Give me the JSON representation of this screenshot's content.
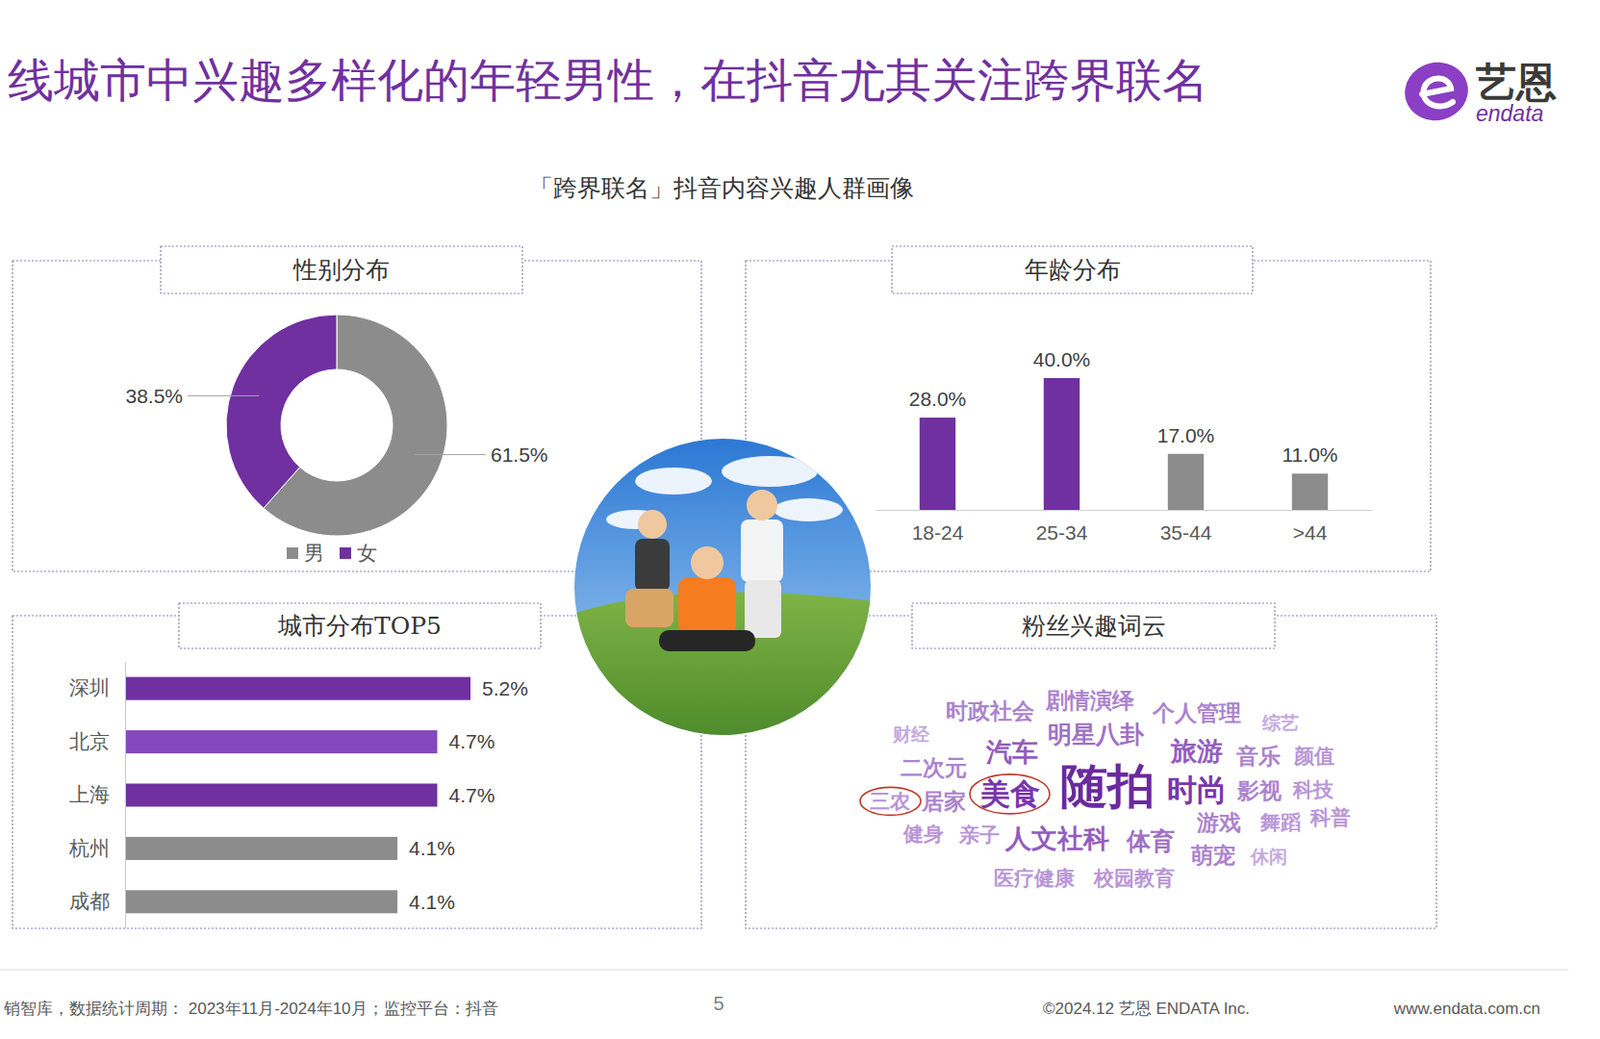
{
  "header": {
    "title": "线城市中兴趣多样化的年轻男性，在抖音尤其关注跨界联名",
    "logo_cn": "艺恩",
    "logo_en": "endata"
  },
  "subtitle": "「跨界联名」抖音内容兴趣人群画像",
  "chart_data": [
    {
      "type": "pie",
      "title": "性别分布",
      "categories": [
        "男",
        "女"
      ],
      "values": [
        61.5,
        38.5
      ],
      "value_labels": [
        "61.5%",
        "38.5%"
      ],
      "colors": [
        "#8c8c8c",
        "#7030a0"
      ],
      "data_labels": true,
      "legend": "bottom"
    },
    {
      "type": "bar",
      "title": "年龄分布",
      "categories": [
        "18-24",
        "25-34",
        "35-44",
        ">44"
      ],
      "values": [
        28.0,
        40.0,
        17.0,
        11.0
      ],
      "value_labels": [
        "28.0%",
        "40.0%",
        "17.0%",
        "11.0%"
      ],
      "colors": [
        "#7030a0",
        "#7030a0",
        "#8c8c8c",
        "#8c8c8c"
      ],
      "ylim": [
        0,
        40
      ],
      "data_labels": true,
      "tick_labels": "x"
    },
    {
      "type": "bar",
      "title": "城市分布TOP5",
      "orientation": "horizontal",
      "categories": [
        "深圳",
        "北京",
        "上海",
        "杭州",
        "成都"
      ],
      "values": [
        5.2,
        4.7,
        4.7,
        4.1,
        4.1
      ],
      "value_labels": [
        "5.2%",
        "4.7%",
        "4.7%",
        "4.1%",
        "4.1%"
      ],
      "colors": [
        "#7030a0",
        "#8548bd",
        "#7030a0",
        "#8c8c8c",
        "#8c8c8c"
      ],
      "xlim": [
        0,
        5.2
      ],
      "data_labels": true,
      "tick_labels": "y"
    }
  ],
  "word_cloud": {
    "title": "粉丝兴趣词云",
    "words": [
      {
        "text": "时政社会",
        "weight": 3
      },
      {
        "text": "剧情演绎",
        "weight": 3
      },
      {
        "text": "个人管理",
        "weight": 3
      },
      {
        "text": "综艺",
        "weight": 1
      },
      {
        "text": "财经",
        "weight": 1
      },
      {
        "text": "明星八卦",
        "weight": 4
      },
      {
        "text": "旅游",
        "weight": 5
      },
      {
        "text": "音乐",
        "weight": 3
      },
      {
        "text": "颜值",
        "weight": 2
      },
      {
        "text": "二次元",
        "weight": 3
      },
      {
        "text": "汽车",
        "weight": 5
      },
      {
        "text": "三农",
        "weight": 2,
        "circled": true
      },
      {
        "text": "居家",
        "weight": 3
      },
      {
        "text": "美食",
        "weight": 7,
        "circled": true
      },
      {
        "text": "随拍",
        "weight": 16
      },
      {
        "text": "时尚",
        "weight": 7
      },
      {
        "text": "影视",
        "weight": 3
      },
      {
        "text": "科技",
        "weight": 2
      },
      {
        "text": "游戏",
        "weight": 3
      },
      {
        "text": "舞蹈",
        "weight": 2
      },
      {
        "text": "科普",
        "weight": 2
      },
      {
        "text": "健身",
        "weight": 2
      },
      {
        "text": "亲子",
        "weight": 2
      },
      {
        "text": "人文社科",
        "weight": 5
      },
      {
        "text": "体育",
        "weight": 4
      },
      {
        "text": "萌宠",
        "weight": 3
      },
      {
        "text": "休闲",
        "weight": 1
      },
      {
        "text": "医疗健康",
        "weight": 2
      },
      {
        "text": "校园教育",
        "weight": 2
      }
    ]
  },
  "footer": {
    "source": "销智库，数据统计周期： 2023年11月-2024年10月；监控平台：抖音",
    "page": "5",
    "copyright": "©2024.12 艺恩 ENDATA Inc.",
    "website": "www.endata.com.cn"
  }
}
